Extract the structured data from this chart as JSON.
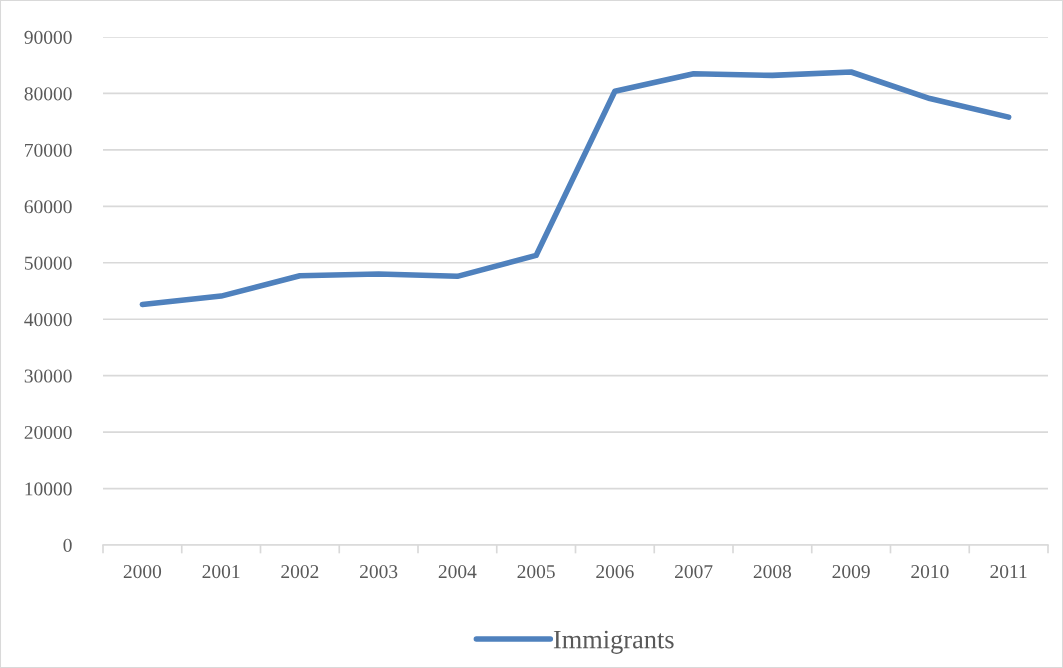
{
  "chart_data": {
    "type": "line",
    "categories": [
      "2000",
      "2001",
      "2002",
      "2003",
      "2004",
      "2005",
      "2006",
      "2007",
      "2008",
      "2009",
      "2010",
      "2011"
    ],
    "series": [
      {
        "name": "Immigrants",
        "color": "#4f81bd",
        "values": [
          42600,
          44100,
          47700,
          48000,
          47600,
          51300,
          80400,
          83500,
          83200,
          83800,
          79100,
          75800
        ]
      }
    ],
    "ylim": [
      0,
      90000
    ],
    "yticks": [
      0,
      10000,
      20000,
      30000,
      40000,
      50000,
      60000,
      70000,
      80000,
      90000
    ],
    "grid": "y",
    "legend": "bottom"
  }
}
